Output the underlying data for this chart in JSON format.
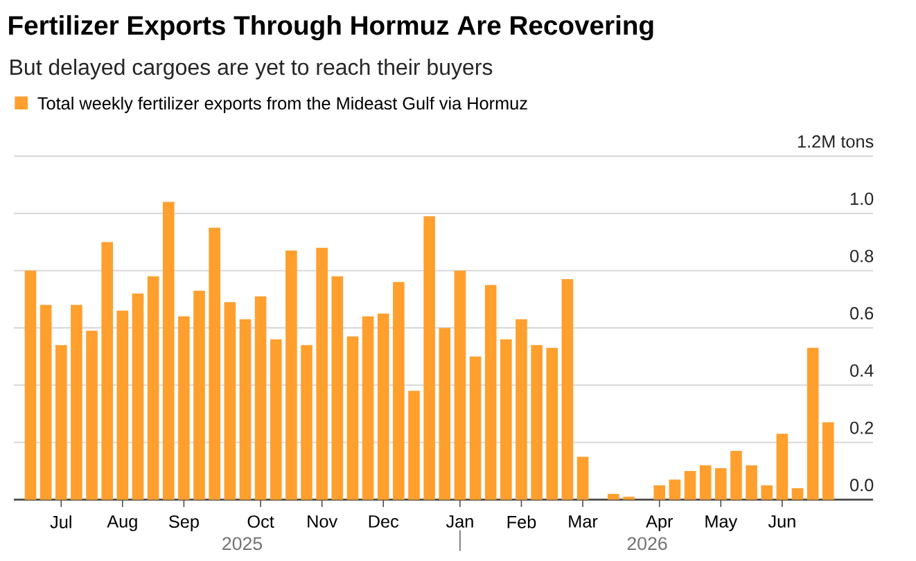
{
  "chart_data": {
    "type": "bar",
    "title": "Fertilizer Exports Through Hormuz Are Recovering",
    "subtitle": "But delayed cargoes are yet to reach their buyers",
    "categories": [
      null,
      null,
      "Jul",
      null,
      null,
      null,
      "Aug",
      null,
      null,
      null,
      "Sep",
      null,
      null,
      null,
      null,
      "Oct",
      null,
      null,
      null,
      "Nov",
      null,
      null,
      null,
      "Dec",
      null,
      null,
      null,
      null,
      "Jan",
      null,
      null,
      null,
      "Feb",
      null,
      null,
      null,
      "Mar",
      null,
      null,
      null,
      null,
      "Apr",
      null,
      null,
      null,
      "May",
      null,
      null,
      null,
      "Jun",
      null,
      null,
      null
    ],
    "series": [
      {
        "name": "Total weekly fertilizer exports from the Mideast Gulf via Hormuz",
        "color": "#ff9f2e",
        "values": [
          0.8,
          0.68,
          0.54,
          0.68,
          0.59,
          0.9,
          0.66,
          0.72,
          0.78,
          1.04,
          0.64,
          0.73,
          0.95,
          0.69,
          0.63,
          0.71,
          0.56,
          0.87,
          0.54,
          0.88,
          0.78,
          0.57,
          0.64,
          0.65,
          0.76,
          0.38,
          0.99,
          0.6,
          0.8,
          0.5,
          0.75,
          0.56,
          0.63,
          0.54,
          0.53,
          0.77,
          0.15,
          null,
          0.02,
          0.01,
          null,
          0.05,
          0.07,
          0.1,
          0.12,
          0.11,
          0.17,
          0.12,
          0.05,
          0.23,
          0.04,
          0.53,
          0.27
        ]
      }
    ],
    "ylim": [
      0,
      1.2
    ],
    "yticks": [
      {
        "value": 0,
        "label": "0.0"
      },
      {
        "value": 0.2,
        "label": "0.2"
      },
      {
        "value": 0.4,
        "label": "0.4"
      },
      {
        "value": 0.6,
        "label": "0.6"
      },
      {
        "value": 0.8,
        "label": "0.8"
      },
      {
        "value": 1.0,
        "label": "1.0"
      },
      {
        "value": 1.2,
        "label": "1.2M tons"
      }
    ],
    "grid": "y",
    "legend": "top left",
    "annotations": [
      "2025",
      "2026"
    ]
  }
}
